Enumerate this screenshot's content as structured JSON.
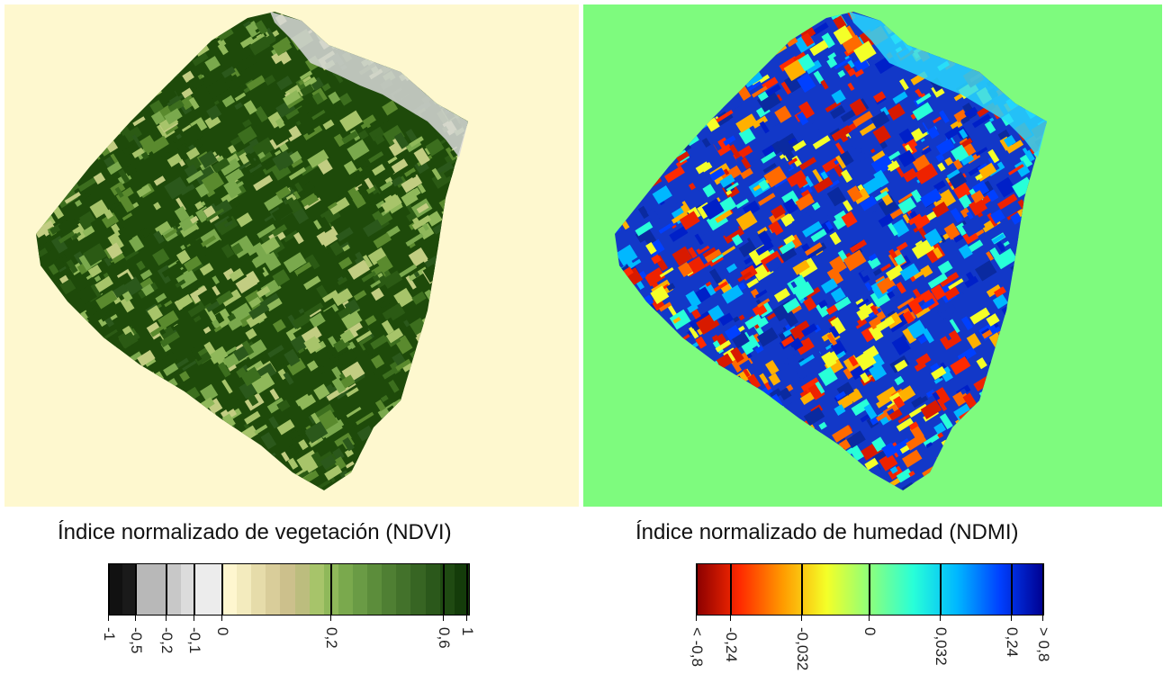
{
  "ndvi": {
    "title": "Índice  normalizado de vegetación (NDVI)",
    "background": "#fef8cf",
    "map_base_color": "#1e4a0a",
    "colors": [
      "#111111",
      "#1a1a1a",
      "#b8b8b8",
      "#c8c8c8",
      "#dcdcdc",
      "#ececec",
      "#fef6cf",
      "#f3ebbe",
      "#e6dcaa",
      "#d9cd9a",
      "#ccc08c",
      "#bcbd7e",
      "#a7c46a",
      "#8fb85a",
      "#7aa94d",
      "#6a9b45",
      "#5c8d3b",
      "#4f7f33",
      "#43722b",
      "#376523",
      "#2b581b",
      "#1f4a12",
      "#143c0a"
    ],
    "ticks": [
      "-1",
      "-0,5",
      "-0,2",
      "-0,1",
      "0",
      "0,2",
      "0,6",
      "1"
    ]
  },
  "ndmi": {
    "title": "Índice normalizado de humedad (NDMI)",
    "background": "#7efb7e",
    "map_base_color": "#1238c8",
    "gradient": [
      "#8b0000",
      "#ff2a00",
      "#ff9c00",
      "#f4ff28",
      "#8cff7c",
      "#28ffd8",
      "#00b8ff",
      "#0040ff",
      "#000090"
    ],
    "ticks": [
      "< -0,8",
      "-0,24",
      "-0,032",
      "0",
      "0,032",
      "0,24",
      "> 0,8"
    ]
  }
}
